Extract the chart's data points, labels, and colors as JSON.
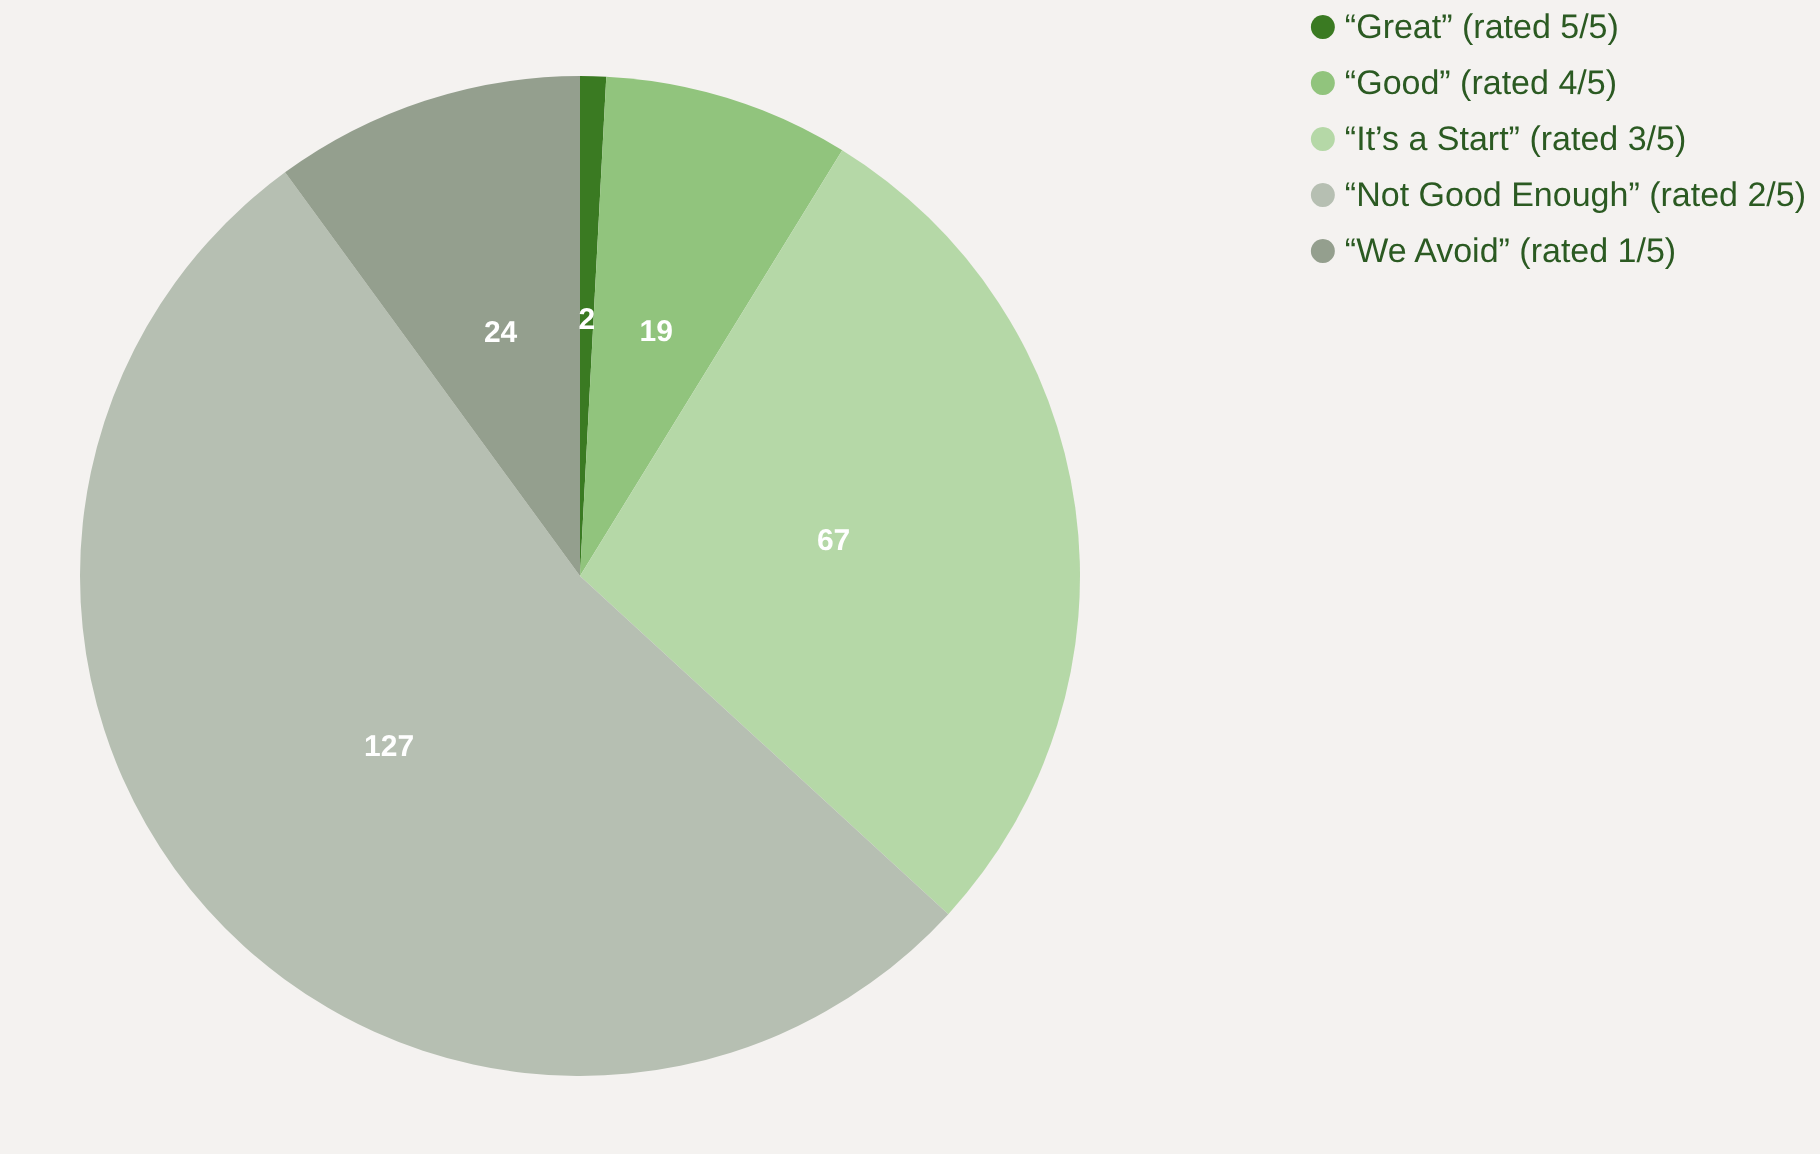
{
  "chart_data": {
    "type": "pie",
    "categories": [
      "“Great” (rated 5/5)",
      "“Good” (rated 4/5)",
      "“It’s a Start” (rated 3/5)",
      "“Not Good Enough” (rated 2/5)",
      "“We Avoid” (rated 1/5)"
    ],
    "values": [
      2,
      19,
      67,
      127,
      24
    ],
    "colors": [
      "#3a7a22",
      "#91c47d",
      "#b5d8a7",
      "#b6bfb2",
      "#949f8e"
    ],
    "data_labels": true,
    "legend": "top right"
  }
}
